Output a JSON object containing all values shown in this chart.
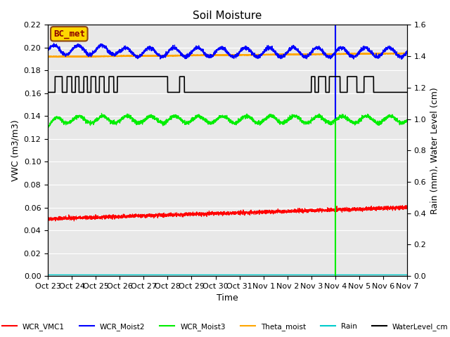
{
  "title": "Soil Moisture",
  "xlabel": "Time",
  "ylabel_left": "VWC (m3/m3)",
  "ylabel_right": "Rain (mm), Water Level (cm)",
  "ylim_left": [
    0.0,
    0.22
  ],
  "ylim_right": [
    0.0,
    1.6
  ],
  "yticks_left": [
    0.0,
    0.02,
    0.04,
    0.06,
    0.08,
    0.1,
    0.12,
    0.14,
    0.16,
    0.18,
    0.2,
    0.22
  ],
  "yticks_right": [
    0.0,
    0.2,
    0.4,
    0.6,
    0.8,
    1.0,
    1.2,
    1.4,
    1.6
  ],
  "annotation_label": "BC_met",
  "annotation_color": "#8B0000",
  "annotation_bg": "#FFD700",
  "x_tick_labels": [
    "Oct 23",
    "Oct 24",
    "Oct 25",
    "Oct 26",
    "Oct 27",
    "Oct 28",
    "Oct 29",
    "Oct 30",
    "Oct 31",
    "Nov 1",
    "Nov 2",
    "Nov 3",
    "Nov 4",
    "Nov 5",
    "Nov 6",
    "Nov 7"
  ],
  "bg_color": "#E8E8E8",
  "vline_x": 12.0,
  "figsize": [
    6.4,
    4.8
  ],
  "dpi": 100
}
